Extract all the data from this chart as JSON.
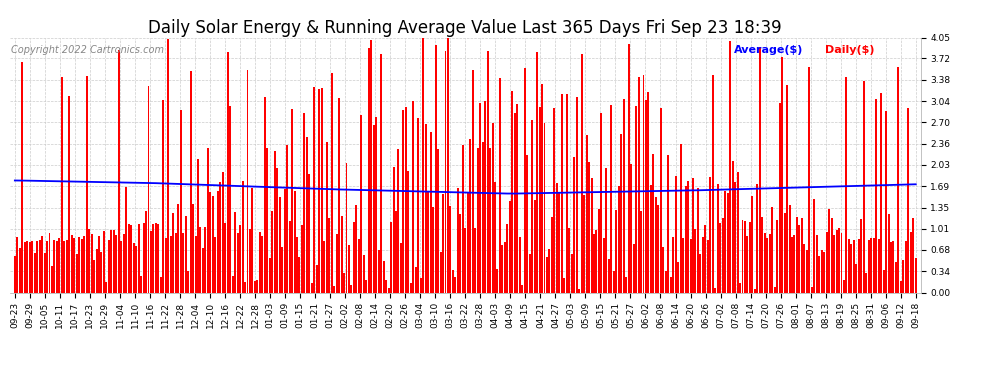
{
  "title": "Daily Solar Energy & Running Average Value Last 365 Days Fri Sep 23 18:39",
  "copyright": "Copyright 2022 Cartronics.com",
  "legend_avg": "Average($)",
  "legend_daily": "Daily($)",
  "bar_color": "#ff0000",
  "avg_line_color": "#0000ff",
  "background_color": "#ffffff",
  "plot_bg_color": "#ffffff",
  "ylim": [
    0.0,
    4.05
  ],
  "yticks": [
    0.0,
    0.34,
    0.68,
    1.01,
    1.35,
    1.69,
    2.03,
    2.36,
    2.7,
    3.04,
    3.38,
    3.72,
    4.05
  ],
  "num_bars": 365,
  "title_fontsize": 12,
  "copyright_fontsize": 7,
  "tick_fontsize": 6.5,
  "legend_fontsize": 8,
  "grid_color": "#cccccc",
  "grid_style": "--",
  "x_tick_labels": [
    "09-23",
    "09-29",
    "10-05",
    "10-11",
    "10-17",
    "10-23",
    "10-29",
    "11-04",
    "11-10",
    "11-16",
    "11-22",
    "11-28",
    "12-04",
    "12-10",
    "12-16",
    "12-22",
    "12-28",
    "01-03",
    "01-09",
    "01-15",
    "01-21",
    "01-27",
    "02-02",
    "02-08",
    "02-14",
    "02-20",
    "02-26",
    "03-04",
    "03-10",
    "03-16",
    "03-22",
    "03-28",
    "04-03",
    "04-09",
    "04-15",
    "04-21",
    "04-27",
    "05-03",
    "05-09",
    "05-15",
    "05-21",
    "05-27",
    "06-02",
    "06-08",
    "06-14",
    "06-20",
    "06-26",
    "07-02",
    "07-08",
    "07-14",
    "07-20",
    "07-26",
    "08-01",
    "08-07",
    "08-13",
    "08-19",
    "08-25",
    "08-31",
    "09-06",
    "09-12",
    "09-18"
  ]
}
